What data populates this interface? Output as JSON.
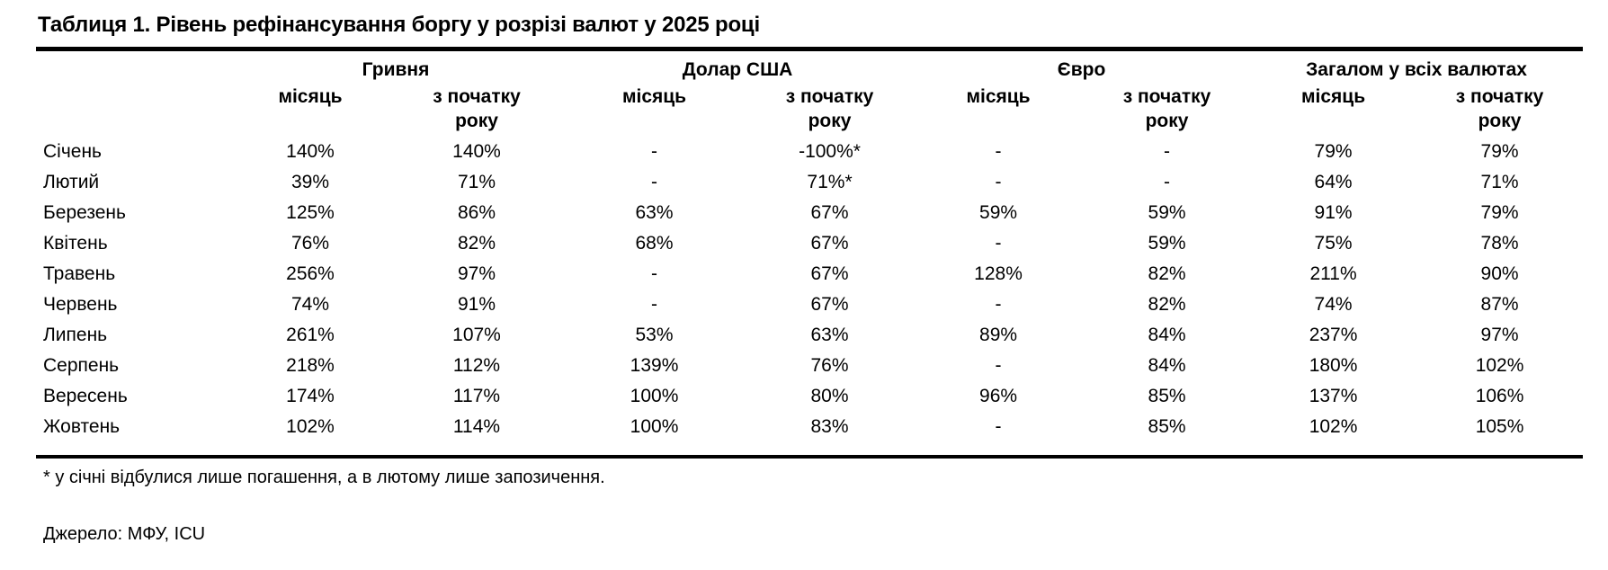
{
  "title": "Таблиця 1. Рівень рефінансування боргу у розрізі валют у 2025 році",
  "colors": {
    "text": "#000000",
    "rule": "#000000",
    "background": "#ffffff"
  },
  "table": {
    "groups": [
      {
        "label": "Гривня"
      },
      {
        "label": "Долар США"
      },
      {
        "label": "Євро"
      },
      {
        "label": "Загалом у всіх валютах"
      }
    ],
    "subheaders": {
      "month": "місяць",
      "ytd": "з початку року"
    },
    "rows": [
      {
        "month": "Січень",
        "values": [
          "140%",
          "140%",
          "-",
          "-100%*",
          "-",
          "-",
          "79%",
          "79%"
        ]
      },
      {
        "month": "Лютий",
        "values": [
          "39%",
          "71%",
          "-",
          "71%*",
          "-",
          "-",
          "64%",
          "71%"
        ]
      },
      {
        "month": "Березень",
        "values": [
          "125%",
          "86%",
          "63%",
          "67%",
          "59%",
          "59%",
          "91%",
          "79%"
        ]
      },
      {
        "month": "Квітень",
        "values": [
          "76%",
          "82%",
          "68%",
          "67%",
          "-",
          "59%",
          "75%",
          "78%"
        ]
      },
      {
        "month": "Травень",
        "values": [
          "256%",
          "97%",
          "-",
          "67%",
          "128%",
          "82%",
          "211%",
          "90%"
        ]
      },
      {
        "month": "Червень",
        "values": [
          "74%",
          "91%",
          "-",
          "67%",
          "-",
          "82%",
          "74%",
          "87%"
        ]
      },
      {
        "month": "Липень",
        "values": [
          "261%",
          "107%",
          "53%",
          "63%",
          "89%",
          "84%",
          "237%",
          "97%"
        ]
      },
      {
        "month": "Серпень",
        "values": [
          "218%",
          "112%",
          "139%",
          "76%",
          "-",
          "84%",
          "180%",
          "102%"
        ]
      },
      {
        "month": "Вересень",
        "values": [
          "174%",
          "117%",
          "100%",
          "80%",
          "96%",
          "85%",
          "137%",
          "106%"
        ]
      },
      {
        "month": "Жовтень",
        "values": [
          "102%",
          "114%",
          "100%",
          "83%",
          "-",
          "85%",
          "102%",
          "105%"
        ]
      }
    ]
  },
  "footnote": "* у січні відбулися лише погашення, а в лютому лише запозичення.",
  "source": "Джерело: МФУ, ICU"
}
